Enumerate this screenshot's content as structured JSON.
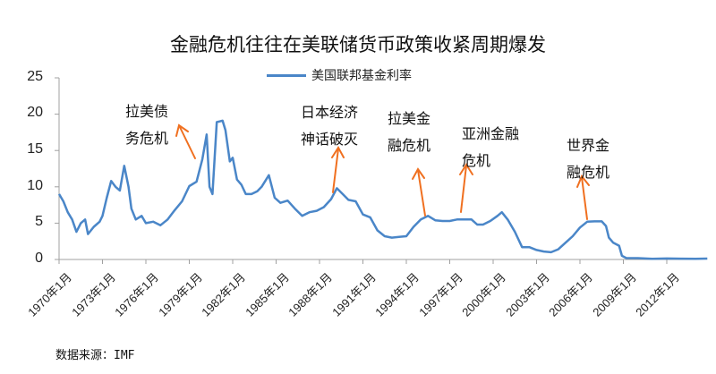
{
  "chart_data": {
    "type": "line",
    "title": "金融危机往往在美联储货币政策收紧周期爆发",
    "xlabel": "",
    "ylabel": "",
    "ylim": [
      0,
      25
    ],
    "yticks": [
      "0",
      "5",
      "10",
      "15",
      "20",
      "25"
    ],
    "xticks": [
      "1970年1月",
      "1973年1月",
      "1976年1月",
      "1979年1月",
      "1982年1月",
      "1985年1月",
      "1988年1月",
      "1991年1月",
      "1994年1月",
      "1997年1月",
      "2000年1月",
      "2003年1月",
      "2006年1月",
      "2009年1月",
      "2012年1月"
    ],
    "grid": false,
    "legend_position": "top",
    "series": [
      {
        "name": "美国联邦基金利率",
        "color": "#4A86C8",
        "x": [
          1970.0,
          1970.3,
          1970.6,
          1970.9,
          1971.2,
          1971.5,
          1971.8,
          1972.0,
          1972.4,
          1972.8,
          1973.0,
          1973.3,
          1973.6,
          1973.9,
          1974.2,
          1974.5,
          1974.8,
          1975.0,
          1975.3,
          1975.7,
          1976.0,
          1976.5,
          1977.0,
          1977.5,
          1978.0,
          1978.5,
          1979.0,
          1979.5,
          1979.9,
          1980.2,
          1980.4,
          1980.6,
          1980.9,
          1981.1,
          1981.3,
          1981.5,
          1981.8,
          1982.0,
          1982.3,
          1982.6,
          1982.9,
          1983.3,
          1983.7,
          1984.0,
          1984.5,
          1984.9,
          1985.3,
          1985.8,
          1986.3,
          1986.8,
          1987.3,
          1987.8,
          1988.3,
          1988.8,
          1989.2,
          1989.6,
          1990.0,
          1990.5,
          1991.0,
          1991.5,
          1992.0,
          1992.5,
          1993.0,
          1993.5,
          1994.0,
          1994.5,
          1995.0,
          1995.5,
          1996.0,
          1996.5,
          1997.0,
          1997.5,
          1998.0,
          1998.5,
          1998.9,
          1999.3,
          1999.8,
          2000.3,
          2000.6,
          2001.0,
          2001.5,
          2002.0,
          2002.5,
          2003.0,
          2003.5,
          2004.0,
          2004.5,
          2005.0,
          2005.5,
          2006.0,
          2006.5,
          2007.0,
          2007.5,
          2007.8,
          2008.0,
          2008.3,
          2008.7,
          2008.9,
          2009.2,
          2010.0,
          2011.0,
          2012.0,
          2013.0,
          2014.0,
          2014.8
        ],
        "values": [
          9.0,
          8.0,
          6.5,
          5.5,
          3.8,
          5.0,
          5.5,
          3.5,
          4.5,
          5.2,
          6.0,
          8.5,
          10.8,
          10.0,
          9.5,
          12.9,
          10.0,
          7.0,
          5.5,
          6.0,
          5.0,
          5.2,
          4.7,
          5.5,
          6.8,
          8.0,
          10.1,
          10.7,
          13.8,
          17.2,
          10.0,
          9.0,
          18.9,
          19.0,
          19.1,
          17.8,
          13.5,
          14.0,
          11.0,
          10.3,
          9.0,
          9.0,
          9.4,
          10.0,
          11.6,
          8.5,
          7.8,
          8.1,
          7.0,
          6.0,
          6.5,
          6.7,
          7.2,
          8.3,
          9.8,
          9.0,
          8.2,
          8.0,
          6.2,
          5.8,
          4.0,
          3.2,
          3.0,
          3.1,
          3.2,
          4.5,
          5.5,
          6.0,
          5.4,
          5.3,
          5.3,
          5.5,
          5.5,
          5.5,
          4.8,
          4.8,
          5.3,
          6.0,
          6.5,
          5.5,
          3.8,
          1.7,
          1.7,
          1.3,
          1.1,
          1.0,
          1.4,
          2.3,
          3.2,
          4.4,
          5.2,
          5.25,
          5.25,
          4.6,
          3.0,
          2.3,
          1.9,
          0.5,
          0.2,
          0.18,
          0.1,
          0.14,
          0.11,
          0.09,
          0.12
        ]
      }
    ],
    "annotations": [
      {
        "text_lines": [
          "拉美债",
          "务危机"
        ],
        "approx_year": 1980.0,
        "arrow_color": "#F07020"
      },
      {
        "text_lines": [
          "日本经济",
          "神话破灭"
        ],
        "approx_year": 1989.5,
        "arrow_color": "#F07020"
      },
      {
        "text_lines": [
          "拉美金",
          "融危机"
        ],
        "approx_year": 1994.8,
        "arrow_color": "#F07020"
      },
      {
        "text_lines": [
          "亚洲金融",
          "危机"
        ],
        "approx_year": 1997.5,
        "arrow_color": "#F07020"
      },
      {
        "text_lines": [
          "世界金",
          "融危机"
        ],
        "approx_year": 2007.2,
        "arrow_color": "#F07020"
      }
    ]
  },
  "title": "金融危机往往在美联储货币政策收紧周期爆发",
  "legend": {
    "label": "美国联邦基金利率",
    "color": "#4A86C8"
  },
  "source": "数据来源：IMF",
  "axis": {
    "y": [
      "0",
      "5",
      "10",
      "15",
      "20",
      "25"
    ],
    "x": [
      "1970年1月",
      "1973年1月",
      "1976年1月",
      "1979年1月",
      "1982年1月",
      "1985年1月",
      "1988年1月",
      "1991年1月",
      "1994年1月",
      "1997年1月",
      "2000年1月",
      "2003年1月",
      "2006年1月",
      "2009年1月",
      "2012年1月"
    ]
  },
  "annotations": [
    {
      "line1": "拉美债",
      "line2": "务危机"
    },
    {
      "line1": "日本经济",
      "line2": "神话破灭"
    },
    {
      "line1": "拉美金",
      "line2": "融危机"
    },
    {
      "line1": "亚洲金融",
      "line2": "危机"
    },
    {
      "line1": "世界金",
      "line2": "融危机"
    }
  ]
}
